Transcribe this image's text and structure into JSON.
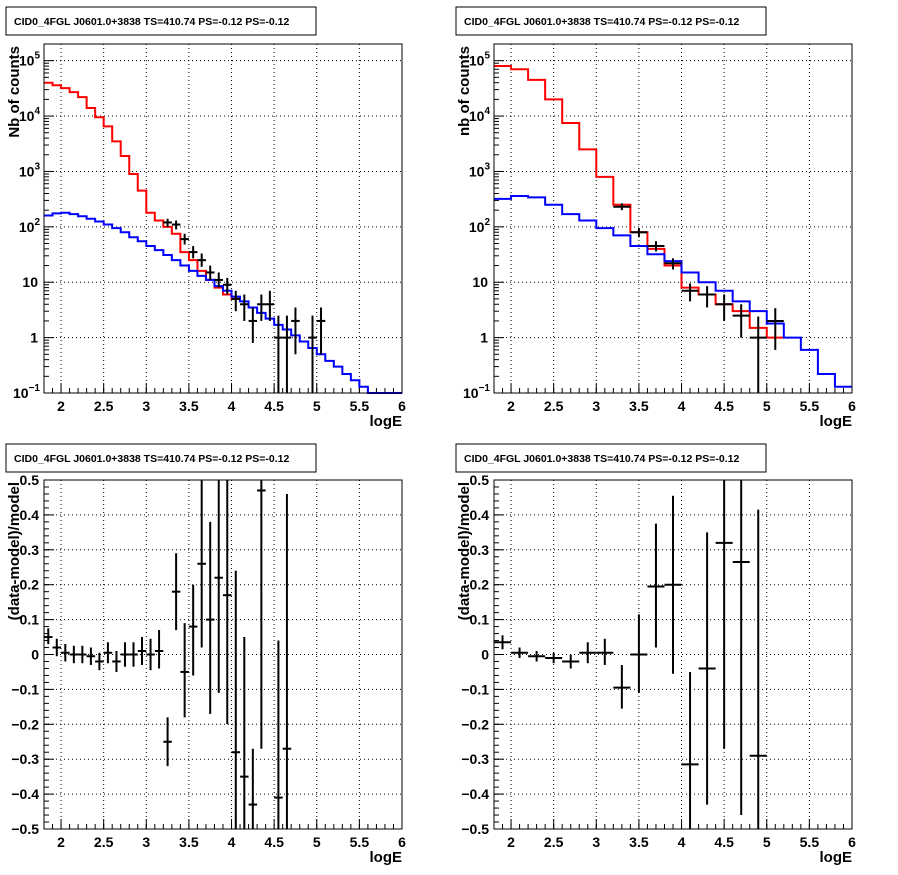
{
  "chart_data": [
    {
      "type": "line",
      "title": "CID0_4FGL J0601.0+3838 TS=410.74 PS=-0.12 PS=-0.12",
      "xlabel": "logE",
      "ylabel": "Nb of counts",
      "xlim": [
        1.8,
        6.0
      ],
      "ylim": [
        0.1,
        200000
      ],
      "log_y": true,
      "grid": true,
      "x_ticks": [
        "2",
        "2.5",
        "3",
        "3.5",
        "4",
        "4.5",
        "5",
        "5.5",
        "6"
      ],
      "y_ticks": [
        {
          "v": 0.1,
          "b": "10",
          "e": "−1"
        },
        {
          "v": 1,
          "b": "1",
          "e": ""
        },
        {
          "v": 10,
          "b": "10",
          "e": ""
        },
        {
          "v": 100,
          "b": "10",
          "e": "2"
        },
        {
          "v": 1000,
          "b": "10",
          "e": "3"
        },
        {
          "v": 10000,
          "b": "10",
          "e": "4"
        },
        {
          "v": 100000,
          "b": "10",
          "e": "5"
        }
      ],
      "series": [
        {
          "kind": "step",
          "color": "#ff0000",
          "bin_width": 0.1,
          "x": [
            1.8,
            1.9,
            2.0,
            2.1,
            2.2,
            2.3,
            2.4,
            2.5,
            2.6,
            2.7,
            2.8,
            2.9,
            3.0,
            3.1,
            3.2,
            3.3,
            3.4,
            3.5,
            3.6,
            3.7,
            3.8,
            3.9,
            4.0
          ],
          "values": [
            40000,
            36000,
            32000,
            27000,
            22000,
            14000,
            9500,
            6500,
            3500,
            1900,
            900,
            450,
            180,
            130,
            100,
            75,
            35,
            25,
            16,
            11,
            8,
            6,
            5
          ]
        },
        {
          "kind": "step",
          "color": "#0000ff",
          "bin_width": 0.1,
          "x": [
            1.8,
            1.9,
            2.0,
            2.1,
            2.2,
            2.3,
            2.4,
            2.5,
            2.6,
            2.7,
            2.8,
            2.9,
            3.0,
            3.1,
            3.2,
            3.3,
            3.4,
            3.5,
            3.6,
            3.7,
            3.8,
            3.9,
            4.0,
            4.1,
            4.2,
            4.3,
            4.4,
            4.5,
            4.6,
            4.7,
            4.8,
            4.9,
            5.0,
            5.1,
            5.2,
            5.3,
            5.4,
            5.5,
            5.6,
            5.7,
            5.8,
            5.9
          ],
          "values": [
            160,
            175,
            180,
            170,
            155,
            140,
            125,
            110,
            95,
            80,
            65,
            55,
            45,
            38,
            31,
            25,
            20,
            16,
            13,
            11,
            8.5,
            7,
            5.5,
            4.5,
            3.5,
            2.8,
            2.2,
            1.7,
            1.4,
            1.1,
            0.85,
            0.65,
            0.5,
            0.38,
            0.3,
            0.22,
            0.17,
            0.13,
            0.1,
            0.1,
            0.1,
            0.1
          ]
        },
        {
          "kind": "errorbar",
          "color": "#000000",
          "bin_width": 0.1,
          "points": [
            {
              "x": 3.25,
              "y": 120,
              "lo": 100,
              "hi": 140
            },
            {
              "x": 3.35,
              "y": 110,
              "lo": 90,
              "hi": 130
            },
            {
              "x": 3.45,
              "y": 60,
              "lo": 48,
              "hi": 75
            },
            {
              "x": 3.55,
              "y": 35,
              "lo": 27,
              "hi": 45
            },
            {
              "x": 3.65,
              "y": 25,
              "lo": 19,
              "hi": 33
            },
            {
              "x": 3.75,
              "y": 15,
              "lo": 11,
              "hi": 20
            },
            {
              "x": 3.85,
              "y": 11,
              "lo": 8,
              "hi": 15
            },
            {
              "x": 3.95,
              "y": 9,
              "lo": 6,
              "hi": 12
            },
            {
              "x": 4.05,
              "y": 5,
              "lo": 3,
              "hi": 7
            },
            {
              "x": 4.15,
              "y": 4,
              "lo": 2,
              "hi": 6
            },
            {
              "x": 4.25,
              "y": 2,
              "lo": 0.8,
              "hi": 3.5
            },
            {
              "x": 4.35,
              "y": 4,
              "lo": 2,
              "hi": 6
            },
            {
              "x": 4.45,
              "y": 4,
              "lo": 2,
              "hi": 7
            },
            {
              "x": 4.55,
              "y": 1,
              "lo": 0.1,
              "hi": 2.5
            },
            {
              "x": 4.65,
              "y": 1,
              "lo": 0.1,
              "hi": 2.5
            },
            {
              "x": 4.75,
              "y": 2,
              "lo": 0.5,
              "hi": 3.5
            },
            {
              "x": 4.95,
              "y": 1,
              "lo": 0.1,
              "hi": 2.5
            },
            {
              "x": 5.05,
              "y": 2,
              "lo": 0.5,
              "hi": 3.5
            }
          ]
        }
      ]
    },
    {
      "type": "line",
      "title": "CID0_4FGL J0601.0+3838 TS=410.74 PS=-0.12 PS=-0.12",
      "xlabel": "logE",
      "ylabel": "nb of counts",
      "xlim": [
        1.8,
        6.0
      ],
      "ylim": [
        0.1,
        200000
      ],
      "log_y": true,
      "grid": true,
      "x_ticks": [
        "2",
        "2.5",
        "3",
        "3.5",
        "4",
        "4.5",
        "5",
        "5.5",
        "6"
      ],
      "y_ticks": [
        {
          "v": 0.1,
          "b": "10",
          "e": "−1"
        },
        {
          "v": 1,
          "b": "1",
          "e": ""
        },
        {
          "v": 10,
          "b": "10",
          "e": ""
        },
        {
          "v": 100,
          "b": "10",
          "e": "2"
        },
        {
          "v": 1000,
          "b": "10",
          "e": "3"
        },
        {
          "v": 10000,
          "b": "10",
          "e": "4"
        },
        {
          "v": 100000,
          "b": "10",
          "e": "5"
        }
      ],
      "series": [
        {
          "kind": "step",
          "color": "#ff0000",
          "bin_width": 0.2,
          "x": [
            1.8,
            2.0,
            2.2,
            2.4,
            2.6,
            2.8,
            3.0,
            3.2,
            3.4,
            3.6,
            3.8,
            4.0,
            4.2,
            4.4,
            4.6,
            4.8,
            5.0
          ],
          "values": [
            80000,
            70000,
            45000,
            20000,
            7500,
            2500,
            800,
            250,
            80,
            40,
            20,
            8,
            6,
            4,
            3,
            1.5,
            1
          ]
        },
        {
          "kind": "step",
          "color": "#0000ff",
          "bin_width": 0.2,
          "x": [
            1.8,
            2.0,
            2.2,
            2.4,
            2.6,
            2.8,
            3.0,
            3.2,
            3.4,
            3.6,
            3.8,
            4.0,
            4.2,
            4.4,
            4.6,
            4.8,
            5.0,
            5.2,
            5.4,
            5.6,
            5.8
          ],
          "values": [
            320,
            360,
            340,
            250,
            170,
            130,
            95,
            70,
            45,
            32,
            24,
            15,
            10,
            7,
            4.5,
            3,
            1.8,
            1,
            0.6,
            0.22,
            0.13
          ]
        },
        {
          "kind": "errorbar",
          "color": "#000000",
          "bin_width": 0.2,
          "points": [
            {
              "x": 3.3,
              "y": 230,
              "lo": 200,
              "hi": 265
            },
            {
              "x": 3.5,
              "y": 80,
              "lo": 65,
              "hi": 95
            },
            {
              "x": 3.7,
              "y": 45,
              "lo": 36,
              "hi": 55
            },
            {
              "x": 3.9,
              "y": 22,
              "lo": 17,
              "hi": 27
            },
            {
              "x": 4.1,
              "y": 7,
              "lo": 4.5,
              "hi": 9.5
            },
            {
              "x": 4.3,
              "y": 6,
              "lo": 3.5,
              "hi": 8.5
            },
            {
              "x": 4.5,
              "y": 4,
              "lo": 2,
              "hi": 6
            },
            {
              "x": 4.7,
              "y": 2.5,
              "lo": 1,
              "hi": 4
            },
            {
              "x": 4.9,
              "y": 1,
              "lo": 0.1,
              "hi": 2.4
            },
            {
              "x": 5.1,
              "y": 2,
              "lo": 0.6,
              "hi": 3.4
            }
          ]
        }
      ]
    },
    {
      "type": "scatter",
      "title": "CID0_4FGL J0601.0+3838 TS=410.74 PS=-0.12 PS=-0.12",
      "xlabel": "logE",
      "ylabel": "(data-model)/model",
      "xlim": [
        1.8,
        6.0
      ],
      "ylim": [
        -0.5,
        0.5
      ],
      "grid": true,
      "x_ticks": [
        "2",
        "2.5",
        "3",
        "3.5",
        "4",
        "4.5",
        "5",
        "5.5",
        "6"
      ],
      "y_ticks": [
        "−0.5",
        "−0.4",
        "−0.3",
        "−0.2",
        "−0.1",
        "0",
        "0.1",
        "0.2",
        "0.3",
        "0.4",
        "0.5"
      ],
      "series": [
        {
          "kind": "errorbar",
          "color": "#000000",
          "bin_width": 0.1,
          "points": [
            {
              "x": 1.85,
              "y": 0.05,
              "lo": 0.03,
              "hi": 0.075
            },
            {
              "x": 1.95,
              "y": 0.02,
              "lo": -0.005,
              "hi": 0.045
            },
            {
              "x": 2.05,
              "y": 0.005,
              "lo": -0.02,
              "hi": 0.03
            },
            {
              "x": 2.15,
              "y": 0.0,
              "lo": -0.025,
              "hi": 0.025
            },
            {
              "x": 2.25,
              "y": 0.0,
              "lo": -0.025,
              "hi": 0.025
            },
            {
              "x": 2.35,
              "y": -0.005,
              "lo": -0.03,
              "hi": 0.02
            },
            {
              "x": 2.45,
              "y": -0.02,
              "lo": -0.045,
              "hi": 0.005
            },
            {
              "x": 2.55,
              "y": 0.005,
              "lo": -0.025,
              "hi": 0.035
            },
            {
              "x": 2.65,
              "y": -0.02,
              "lo": -0.05,
              "hi": 0.01
            },
            {
              "x": 2.75,
              "y": 0.0,
              "lo": -0.035,
              "hi": 0.035
            },
            {
              "x": 2.85,
              "y": 0.0,
              "lo": -0.035,
              "hi": 0.035
            },
            {
              "x": 2.95,
              "y": 0.01,
              "lo": -0.03,
              "hi": 0.05
            },
            {
              "x": 3.05,
              "y": 0.0,
              "lo": -0.045,
              "hi": 0.045
            },
            {
              "x": 3.15,
              "y": 0.01,
              "lo": -0.04,
              "hi": 0.07
            },
            {
              "x": 3.25,
              "y": -0.25,
              "lo": -0.32,
              "hi": -0.18
            },
            {
              "x": 3.35,
              "y": 0.18,
              "lo": 0.07,
              "hi": 0.29
            },
            {
              "x": 3.45,
              "y": -0.05,
              "lo": -0.18,
              "hi": 0.09
            },
            {
              "x": 3.55,
              "y": 0.08,
              "lo": -0.06,
              "hi": 0.2
            },
            {
              "x": 3.65,
              "y": 0.26,
              "lo": 0.02,
              "hi": 0.5
            },
            {
              "x": 3.75,
              "y": 0.1,
              "lo": -0.17,
              "hi": 0.38
            },
            {
              "x": 3.85,
              "y": 0.22,
              "lo": -0.11,
              "hi": 0.5
            },
            {
              "x": 3.95,
              "y": 0.17,
              "lo": -0.2,
              "hi": 0.5
            },
            {
              "x": 4.05,
              "y": -0.28,
              "lo": -0.5,
              "hi": 0.24
            },
            {
              "x": 4.15,
              "y": -0.35,
              "lo": -0.5,
              "hi": 0.05
            },
            {
              "x": 4.25,
              "y": -0.43,
              "lo": -0.5,
              "hi": -0.27
            },
            {
              "x": 4.35,
              "y": 0.47,
              "lo": -0.27,
              "hi": 0.5
            },
            {
              "x": 4.55,
              "y": -0.41,
              "lo": -0.5,
              "hi": 0.04
            },
            {
              "x": 4.65,
              "y": -0.27,
              "lo": -0.5,
              "hi": 0.46
            }
          ]
        }
      ]
    },
    {
      "type": "scatter",
      "title": "CID0_4FGL J0601.0+3838 TS=410.74 PS=-0.12 PS=-0.12",
      "xlabel": "logE",
      "ylabel": "(data-model)/model",
      "xlim": [
        1.8,
        6.0
      ],
      "ylim": [
        -0.5,
        0.5
      ],
      "grid": true,
      "x_ticks": [
        "2",
        "2.5",
        "3",
        "3.5",
        "4",
        "4.5",
        "5",
        "5.5",
        "6"
      ],
      "y_ticks": [
        "−0.5",
        "−0.4",
        "−0.3",
        "−0.2",
        "−0.1",
        "0",
        "0.1",
        "0.2",
        "0.3",
        "0.4",
        "0.5"
      ],
      "series": [
        {
          "kind": "errorbar",
          "color": "#000000",
          "bin_width": 0.2,
          "points": [
            {
              "x": 1.9,
              "y": 0.035,
              "lo": 0.015,
              "hi": 0.055
            },
            {
              "x": 2.1,
              "y": 0.005,
              "lo": -0.01,
              "hi": 0.02
            },
            {
              "x": 2.3,
              "y": -0.005,
              "lo": -0.02,
              "hi": 0.01
            },
            {
              "x": 2.5,
              "y": -0.01,
              "lo": -0.025,
              "hi": 0.005
            },
            {
              "x": 2.7,
              "y": -0.02,
              "lo": -0.04,
              "hi": 0.0
            },
            {
              "x": 2.9,
              "y": 0.005,
              "lo": -0.025,
              "hi": 0.035
            },
            {
              "x": 3.1,
              "y": 0.005,
              "lo": -0.03,
              "hi": 0.045
            },
            {
              "x": 3.3,
              "y": -0.095,
              "lo": -0.155,
              "hi": -0.03
            },
            {
              "x": 3.5,
              "y": 0.0,
              "lo": -0.11,
              "hi": 0.115
            },
            {
              "x": 3.7,
              "y": 0.195,
              "lo": 0.02,
              "hi": 0.375
            },
            {
              "x": 3.9,
              "y": 0.2,
              "lo": -0.055,
              "hi": 0.455
            },
            {
              "x": 4.1,
              "y": -0.315,
              "lo": -0.5,
              "hi": -0.05
            },
            {
              "x": 4.3,
              "y": -0.04,
              "lo": -0.43,
              "hi": 0.35
            },
            {
              "x": 4.5,
              "y": 0.32,
              "lo": -0.27,
              "hi": 0.5
            },
            {
              "x": 4.7,
              "y": 0.265,
              "lo": -0.46,
              "hi": 0.5
            },
            {
              "x": 4.9,
              "y": -0.29,
              "lo": -0.5,
              "hi": 0.415
            }
          ]
        }
      ]
    }
  ]
}
